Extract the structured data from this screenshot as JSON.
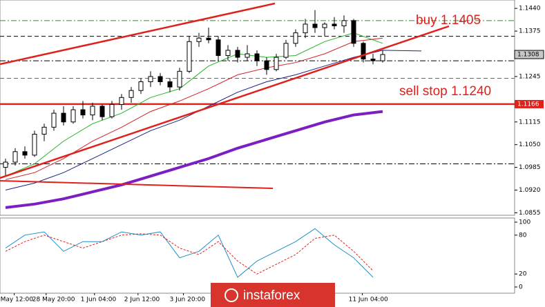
{
  "watermark": "instaforex",
  "chart_data": [
    {
      "type": "candlestick",
      "xlim": [
        -0.5714,
        52.643
      ],
      "ylim": [
        1.0848,
        1.1464
      ],
      "yticks": [
        {
          "value": 1.144,
          "label": "1.1440"
        },
        {
          "value": 1.1375,
          "label": "1.1375"
        },
        {
          "value": 1.1245,
          "label": "1.1245"
        },
        {
          "value": 1.1115,
          "label": "1.1115"
        },
        {
          "value": 1.105,
          "label": "1.1050"
        },
        {
          "value": 1.0985,
          "label": "1.0985"
        },
        {
          "value": 1.092,
          "label": "1.0920"
        },
        {
          "value": 1.0855,
          "label": "1.0855"
        }
      ],
      "open": [
        1.0985,
        1.1,
        1.103,
        1.102,
        1.108,
        1.11,
        1.114,
        1.1115,
        1.115,
        1.1135,
        1.116,
        1.113,
        1.1165,
        1.1185,
        1.1205,
        1.123,
        1.1245,
        1.123,
        1.1215,
        1.126,
        1.1345,
        1.1355,
        1.135,
        1.1305,
        1.132,
        1.13,
        1.131,
        1.129,
        1.1265,
        1.13,
        1.134,
        1.137,
        1.1395,
        1.1385,
        1.1395,
        1.139,
        1.1405,
        1.134,
        1.1295,
        1.129
      ],
      "high": [
        1.101,
        1.104,
        1.1045,
        1.109,
        1.111,
        1.115,
        1.116,
        1.116,
        1.1175,
        1.117,
        1.1165,
        1.1175,
        1.1195,
        1.1215,
        1.124,
        1.126,
        1.1255,
        1.124,
        1.127,
        1.136,
        1.137,
        1.1385,
        1.136,
        1.1335,
        1.133,
        1.1335,
        1.132,
        1.13,
        1.131,
        1.135,
        1.138,
        1.141,
        1.1435,
        1.14,
        1.1415,
        1.142,
        1.141,
        1.1345,
        1.131,
        1.132
      ],
      "low": [
        1.096,
        1.099,
        1.101,
        1.1015,
        1.106,
        1.109,
        1.1105,
        1.111,
        1.1125,
        1.112,
        1.112,
        1.1125,
        1.115,
        1.117,
        1.1195,
        1.1215,
        1.122,
        1.12,
        1.1205,
        1.1255,
        1.133,
        1.134,
        1.129,
        1.129,
        1.1285,
        1.129,
        1.1275,
        1.125,
        1.126,
        1.1295,
        1.133,
        1.1355,
        1.137,
        1.136,
        1.138,
        1.137,
        1.133,
        1.1285,
        1.128,
        1.1285
      ],
      "close": [
        1.1,
        1.103,
        1.102,
        1.108,
        1.11,
        1.114,
        1.1115,
        1.115,
        1.1135,
        1.116,
        1.113,
        1.1165,
        1.1185,
        1.1205,
        1.123,
        1.1245,
        1.123,
        1.1215,
        1.126,
        1.1345,
        1.1355,
        1.135,
        1.1305,
        1.132,
        1.13,
        1.131,
        1.129,
        1.1265,
        1.13,
        1.134,
        1.137,
        1.1395,
        1.1385,
        1.1395,
        1.139,
        1.1405,
        1.134,
        1.1295,
        1.129,
        1.1308
      ],
      "series": [
        {
          "color": "#22b322",
          "width": 1,
          "x": [
            0,
            3,
            6,
            9,
            12,
            15,
            18,
            21,
            24,
            27,
            30,
            33,
            36,
            39
          ],
          "values": [
            1.096,
            1.0995,
            1.106,
            1.111,
            1.114,
            1.1185,
            1.121,
            1.1275,
            1.131,
            1.13,
            1.1305,
            1.1345,
            1.137,
            1.134
          ]
        },
        {
          "color": "#d42020",
          "width": 1,
          "x": [
            0,
            3,
            6,
            9,
            12,
            15,
            18,
            21,
            24,
            27,
            30,
            33,
            36,
            39
          ],
          "values": [
            1.095,
            1.097,
            1.101,
            1.106,
            1.11,
            1.1145,
            1.1175,
            1.121,
            1.125,
            1.127,
            1.1285,
            1.131,
            1.1345,
            1.1355
          ]
        },
        {
          "color": "#1a237e",
          "width": 1,
          "x": [
            0,
            3,
            6,
            9,
            12,
            15,
            18,
            21,
            24,
            27,
            30,
            33,
            36,
            39,
            43
          ],
          "values": [
            1.092,
            1.094,
            1.097,
            1.101,
            1.105,
            1.109,
            1.112,
            1.116,
            1.12,
            1.123,
            1.125,
            1.1275,
            1.13,
            1.132,
            1.1318
          ]
        },
        {
          "color": "#7b1fc2",
          "width": 4,
          "x": [
            0,
            3,
            6,
            9,
            12,
            15,
            18,
            21,
            24,
            27,
            30,
            33,
            36,
            39
          ],
          "values": [
            1.087,
            1.088,
            1.0895,
            1.0915,
            1.0935,
            1.096,
            1.0985,
            1.101,
            1.104,
            1.1065,
            1.109,
            1.1115,
            1.1135,
            1.1145
          ]
        }
      ],
      "levels": [
        {
          "value": 1.1405,
          "color": "#2e8b2e",
          "style": "dashdot"
        },
        {
          "value": 1.136,
          "color": "#000000",
          "style": "dash"
        },
        {
          "value": 1.129,
          "color": "#000000",
          "style": "dashdot"
        },
        {
          "value": 1.124,
          "color": "#2e8b2e",
          "style": "dash"
        },
        {
          "value": 1.1166,
          "color": "#e0201b",
          "style": "solid",
          "label": true
        },
        {
          "value": 1.0995,
          "color": "#000000",
          "style": "dashdot"
        }
      ],
      "last_price": 1.1308,
      "annotations": [
        "buy 1.1405",
        "sell stop 1.1240"
      ]
    },
    {
      "type": "line",
      "xlim": [
        -0.5714,
        52.643
      ],
      "ylim": [
        -9.6,
        106.4
      ],
      "yticks": [
        100,
        80,
        20,
        0
      ],
      "series": [
        {
          "color": "#1e90c8",
          "dash": false,
          "x": [
            0,
            2,
            4,
            6,
            8,
            10,
            12,
            14,
            16,
            18,
            20,
            22,
            24,
            26,
            28,
            30,
            32,
            34,
            36,
            38
          ],
          "values": [
            60,
            80,
            85,
            55,
            70,
            70,
            85,
            80,
            85,
            45,
            55,
            80,
            15,
            40,
            55,
            70,
            90,
            65,
            45,
            15
          ]
        },
        {
          "color": "#e0201b",
          "dash": true,
          "x": [
            0,
            2,
            4,
            6,
            8,
            10,
            12,
            14,
            16,
            18,
            20,
            22,
            24,
            26,
            28,
            30,
            32,
            34,
            36,
            38
          ],
          "values": [
            55,
            70,
            80,
            70,
            60,
            70,
            80,
            82,
            80,
            60,
            50,
            70,
            40,
            20,
            35,
            50,
            75,
            80,
            55,
            25
          ]
        }
      ],
      "xticks": [
        {
          "value": 0.9,
          "label": "May 12:00"
        },
        {
          "value": 4.2,
          "label": "28 May 20:00"
        },
        {
          "value": 9.2,
          "label": "1 Jun 04:00"
        },
        {
          "value": 13.7,
          "label": "2 Jun 12:00"
        },
        {
          "value": 18.4,
          "label": "3 Jun 20:00"
        },
        {
          "value": 36.9,
          "label": "11 Jun 04:00"
        }
      ]
    }
  ]
}
